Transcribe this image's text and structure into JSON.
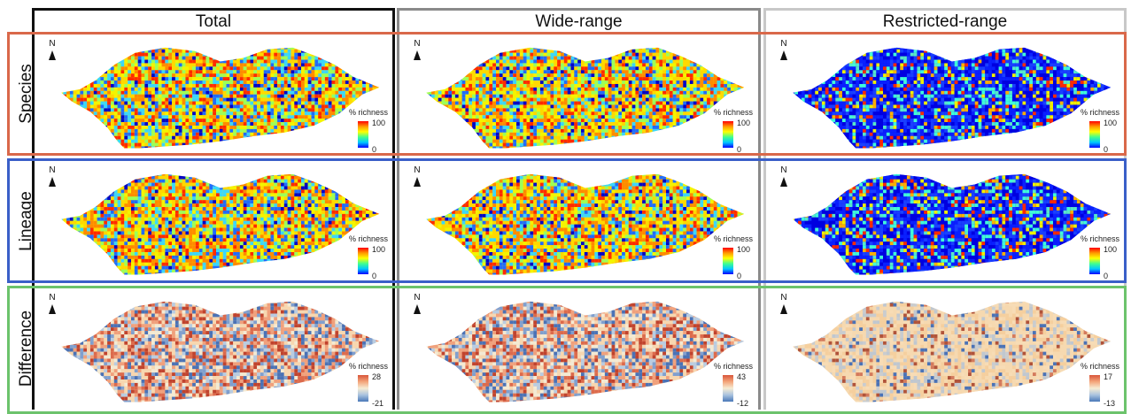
{
  "columns": [
    "Total",
    "Wide-range",
    "Restricted-range"
  ],
  "rows": [
    "Species",
    "Lineage",
    "Difference"
  ],
  "north_label": "N",
  "legend_title": "% richness",
  "legends": {
    "species": [
      {
        "max": "100",
        "min": "0"
      },
      {
        "max": "100",
        "min": "0"
      },
      {
        "max": "100",
        "min": "0"
      }
    ],
    "lineage": [
      {
        "max": "100",
        "min": "0"
      },
      {
        "max": "100",
        "min": "0"
      },
      {
        "max": "100",
        "min": "0"
      }
    ],
    "difference": [
      {
        "max": "28",
        "min": "-21"
      },
      {
        "max": "43",
        "min": "-12"
      },
      {
        "max": "17",
        "min": "-13"
      }
    ]
  },
  "colors": {
    "col_total": "#111111",
    "col_wide": "#8a8a8a",
    "col_restricted": "#c8c8c8",
    "row_species": "#d9684a",
    "row_lineage": "#3a5fc8",
    "row_difference": "#6cc36c"
  }
}
